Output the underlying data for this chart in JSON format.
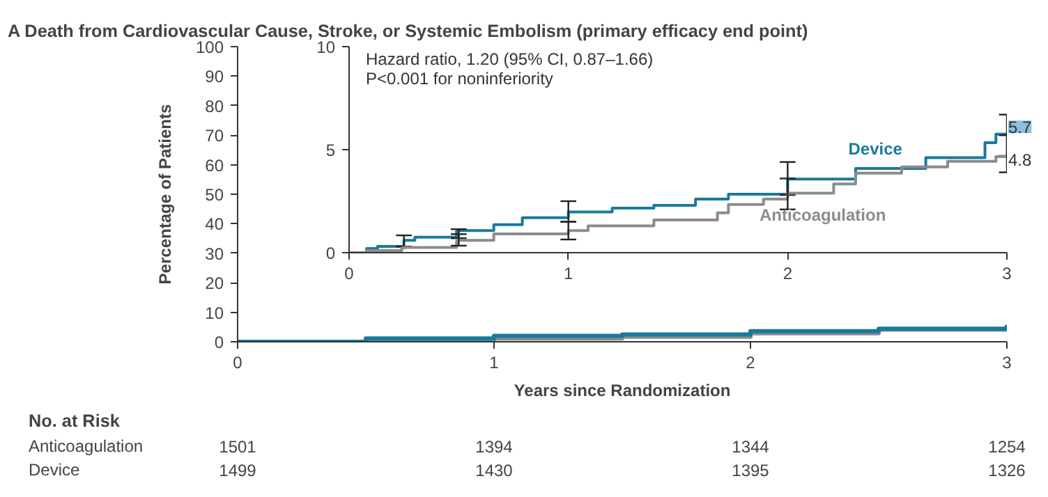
{
  "chart_data": [
    {
      "type": "step",
      "title": "A  Death from Cardiovascular Cause, Stroke, or Systemic Embolism (primary efficacy end point)",
      "xlabel": "Years since Randomization",
      "ylabel": "Percentage of Patients",
      "xlim": [
        0,
        3
      ],
      "ylim": [
        0,
        100
      ],
      "xticks": [
        0,
        1,
        2,
        3
      ],
      "yticks": [
        0,
        10,
        20,
        30,
        40,
        50,
        60,
        70,
        80,
        90,
        100
      ],
      "series": [
        {
          "color": "#8c8c8c",
          "x": [
            0,
            0.5,
            1,
            1.5,
            2,
            2.5,
            3
          ],
          "values": [
            0,
            0.6,
            1.1,
            1.7,
            2.9,
            4.1,
            4.8
          ]
        },
        {
          "color": "#1a7a9c",
          "x": [
            0,
            0.5,
            1,
            1.5,
            2,
            2.5,
            3
          ],
          "values": [
            0,
            1.1,
            2.0,
            2.5,
            3.6,
            4.4,
            5.7
          ]
        }
      ],
      "annotations": [
        "No. at Risk",
        "Anticoagulation",
        "1501",
        "1394",
        "1344",
        "1254",
        "Device",
        "1499",
        "1430",
        "1395",
        "1326"
      ]
    },
    {
      "type": "step",
      "xlim": [
        0,
        3
      ],
      "ylim": [
        0,
        10
      ],
      "xticks": [
        0,
        1,
        2,
        3
      ],
      "yticks": [
        0,
        5,
        10
      ],
      "series": [
        {
          "name": "Device",
          "color": "#1a7a9c",
          "x": [
            0,
            0.08,
            0.13,
            0.25,
            0.3,
            0.49,
            0.5,
            0.66,
            0.79,
            1,
            1.2,
            1.39,
            1.58,
            1.73,
            2,
            2.31,
            2.63,
            2.9,
            2.95,
            3
          ],
          "values": [
            0,
            0.2,
            0.3,
            0.6,
            0.75,
            1.05,
            1.07,
            1.36,
            1.7,
            1.98,
            2.16,
            2.3,
            2.6,
            2.84,
            3.57,
            4.09,
            4.61,
            5.34,
            5.75,
            5.7
          ],
          "errors": [
            null,
            null,
            null,
            [
              0.3,
              0.84
            ],
            null,
            null,
            [
              0.7,
              1.14
            ],
            null,
            null,
            [
              1.5,
              2.5
            ],
            null,
            null,
            null,
            null,
            [
              2.8,
              4.4
            ],
            null,
            null,
            null,
            null,
            [
              4.7,
              6.7
            ]
          ]
        },
        {
          "name": "Anticoagulation",
          "color": "#8c8c8c",
          "x": [
            0,
            0.08,
            0.24,
            0.25,
            0.49,
            0.5,
            0.66,
            1,
            1.09,
            1.39,
            1.68,
            1.73,
            1.89,
            2,
            2.21,
            2.31,
            2.52,
            2.73,
            2.95,
            3
          ],
          "values": [
            0,
            0.1,
            0.23,
            0.25,
            0.57,
            0.6,
            0.91,
            1.07,
            1.3,
            1.59,
            1.93,
            2.34,
            2.6,
            2.89,
            3.34,
            3.86,
            4.16,
            4.43,
            4.66,
            4.8
          ],
          "errors": [
            null,
            null,
            null,
            null,
            null,
            [
              0.34,
              0.9
            ],
            null,
            [
              0.64,
              1.5
            ],
            null,
            null,
            null,
            null,
            null,
            [
              2.1,
              3.6
            ],
            null,
            null,
            null,
            null,
            null,
            [
              3.9,
              5.7
            ]
          ]
        }
      ],
      "annotations": [
        "Hazard ratio, 1.20 (95% CI, 0.87–1.66)",
        "P<0.001 for noninferiority",
        {
          "text": "5.7",
          "x": 3,
          "y": 5.7
        },
        {
          "text": "4.8",
          "x": 3,
          "y": 4.8
        }
      ]
    }
  ]
}
